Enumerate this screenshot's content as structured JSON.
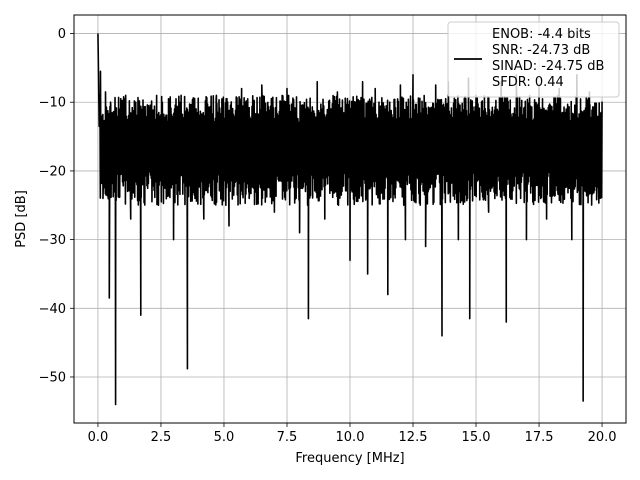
{
  "chart_data": {
    "type": "line",
    "xlabel": "Frequency [MHz]",
    "ylabel": "PSD [dB]",
    "xlim": [
      -0.95,
      20.95
    ],
    "ylim": [
      -56.7,
      2.7
    ],
    "xticks": [
      0.0,
      2.5,
      5.0,
      7.5,
      10.0,
      12.5,
      15.0,
      17.5,
      20.0
    ],
    "xtick_labels": [
      "0.0",
      "2.5",
      "5.0",
      "7.5",
      "10.0",
      "12.5",
      "15.0",
      "17.5",
      "20.0"
    ],
    "yticks": [
      0,
      -10,
      -20,
      -30,
      -40,
      -50
    ],
    "ytick_labels": [
      "0",
      "−10",
      "−20",
      "−30",
      "−40",
      "−50"
    ],
    "grid": true,
    "legend": {
      "placement": "top-right",
      "entries": [
        "ENOB: -4.4 bits",
        "SNR: -24.73 dB",
        "SINAD: -24.75 dB",
        "SFDR: 0.44"
      ]
    },
    "line_color": "#000000",
    "series": [
      {
        "x": [
          0.0,
          0.05,
          0.1,
          0.2,
          0.3,
          0.45,
          0.5,
          0.7,
          0.85,
          1.0,
          1.1,
          1.3,
          1.5,
          1.7,
          2.0,
          2.4,
          2.8,
          3.0,
          3.3,
          3.55,
          3.8,
          4.2,
          4.7,
          5.2,
          5.7,
          6.0,
          6.5,
          7.0,
          7.5,
          8.0,
          8.35,
          8.7,
          9.0,
          9.5,
          10.0,
          10.5,
          10.7,
          11.0,
          11.5,
          12.0,
          12.2,
          12.5,
          13.0,
          13.4,
          13.65,
          13.9,
          14.3,
          14.7,
          14.75,
          15.0,
          15.5,
          16.0,
          16.2,
          16.6,
          17.0,
          17.5,
          17.8,
          18.3,
          18.8,
          19.0,
          19.25,
          19.5,
          19.8,
          20.0
        ],
        "y": [
          0.0,
          -13.5,
          -5.5,
          -24.0,
          -8.5,
          -38.5,
          -10.0,
          -54.0,
          -11.0,
          -22.0,
          -9.0,
          -27.0,
          -10.0,
          -41.0,
          -10.5,
          -25.0,
          -9.5,
          -30.0,
          -9.0,
          -48.8,
          -10.5,
          -27.0,
          -9.0,
          -28.0,
          -8.0,
          -24.0,
          -7.5,
          -26.0,
          -8.0,
          -29.0,
          -41.5,
          -7.0,
          -27.0,
          -8.5,
          -33.0,
          -7.0,
          -35.0,
          -8.0,
          -38.0,
          -7.5,
          -30.0,
          -6.0,
          -31.0,
          -7.5,
          -44.0,
          -7.0,
          -30.0,
          -6.5,
          -41.5,
          -9.0,
          -26.0,
          -7.0,
          -42.0,
          -6.0,
          -30.0,
          -7.5,
          -27.0,
          -8.0,
          -30.0,
          -6.0,
          -53.5,
          -8.5,
          -22.0,
          -10.0
        ],
        "band_lower": -25.0,
        "band_upper": -9.0
      }
    ]
  }
}
